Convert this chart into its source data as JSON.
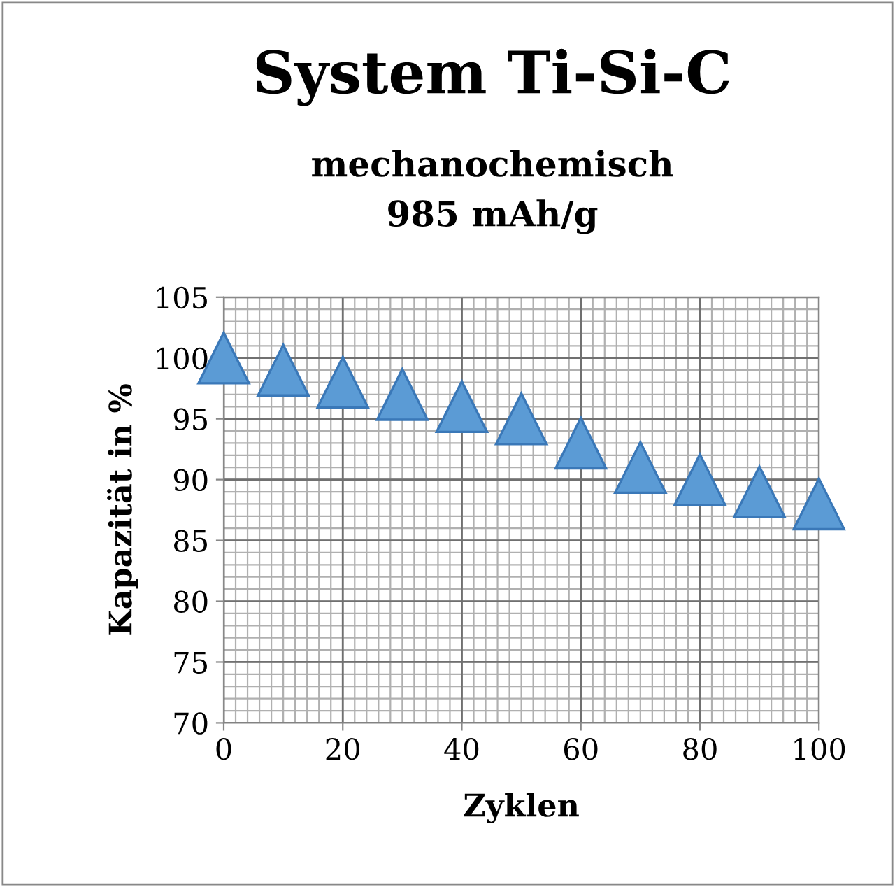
{
  "chart_data": {
    "type": "scatter",
    "title": "System Ti-Si-C",
    "subtitle": "mechanochemisch\n985 mAh/g",
    "xlabel": "Zyklen",
    "ylabel": "Kapazität in %",
    "x": [
      0,
      10,
      20,
      30,
      40,
      50,
      60,
      70,
      80,
      90,
      100
    ],
    "series": [
      {
        "color": "#5b9bd5",
        "values": [
          100,
          99,
          98,
          97,
          96,
          95,
          93,
          91,
          90,
          89,
          88
        ]
      }
    ],
    "xlim": [
      0,
      100
    ],
    "xticks": [
      0,
      20,
      40,
      60,
      80,
      100
    ],
    "ylim": [
      70,
      105
    ],
    "yticks": [
      70,
      75,
      80,
      85,
      90,
      95,
      100,
      105
    ],
    "grid": true,
    "marker": "triangle",
    "legend": false
  }
}
